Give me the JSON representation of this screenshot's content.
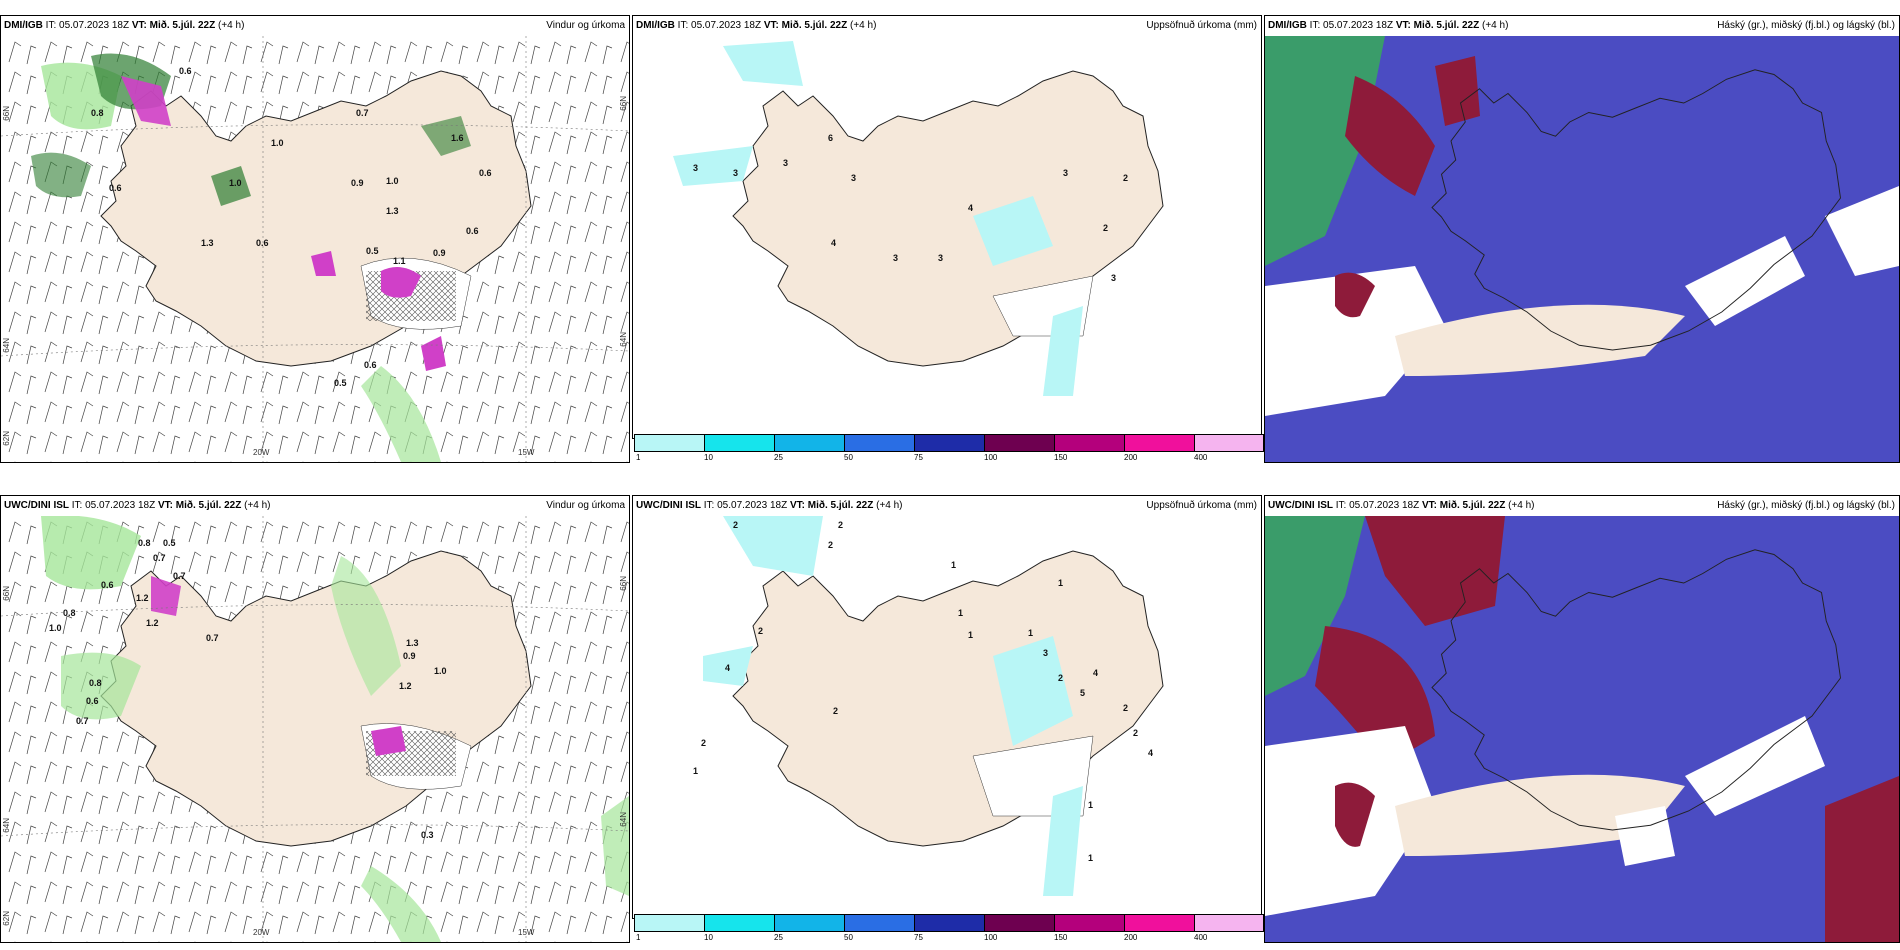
{
  "header": {
    "it_prefix": "IT:",
    "vt_prefix": "VT:",
    "issue_time": "05.07.2023 18Z",
    "valid_time": "Mið. 5.júl. 22Z",
    "lead": "(+4 h)"
  },
  "rows": [
    {
      "model": "DMI/IGB"
    },
    {
      "model": "UWC/DINI ISL"
    }
  ],
  "titles": {
    "wind_precip": "Vindur og úrkoma",
    "accum_precip": "Uppsöfnuð úrkoma (mm)",
    "clouds": "Háský (gr.), miðský (fj.bl.) og lágský (bl.)"
  },
  "axis_labels": {
    "lat_top": "66N",
    "lat_mid": "64N",
    "lat_bot": "62N",
    "lon_left": "20W",
    "lon_right": "15W",
    "lat_right_top": "66N",
    "lat_right_mid": "64N"
  },
  "colorbar": {
    "ticks": [
      "1",
      "10",
      "25",
      "50",
      "75",
      "100",
      "150",
      "200",
      "400"
    ],
    "colors": [
      "#b8f6f6",
      "#16e4ec",
      "#12b4e8",
      "#2a6ee4",
      "#1e2ca8",
      "#6e0050",
      "#b4007c",
      "#f0109c",
      "#f5b4ef"
    ]
  },
  "map_values": {
    "dmi_wind": [
      "0.6",
      "0.8",
      "0.7",
      "1.0",
      "1.6",
      "0.6",
      "0.9",
      "1.0",
      "1.3",
      "0.6",
      "0.5",
      "1.1",
      "0.9",
      "0.6",
      "0.6",
      "0.5",
      "1.3",
      "1.0",
      "0.6"
    ],
    "dmi_accum": [
      "3",
      "3",
      "3",
      "6",
      "3",
      "4",
      "3",
      "4",
      "2",
      "2",
      "3",
      "3",
      "3"
    ],
    "uwc_wind": [
      "0.8",
      "0.5",
      "0.7",
      "0.6",
      "0.7",
      "1.2",
      "0.8",
      "1.2",
      "1.0",
      "0.8",
      "0.6",
      "0.7",
      "0.7",
      "1.3",
      "0.9",
      "1.0",
      "1.2",
      "0.3"
    ],
    "uwc_accum": [
      "2",
      "2",
      "2",
      "1",
      "4",
      "2",
      "2",
      "1",
      "1",
      "1",
      "1",
      "3",
      "2",
      "5",
      "4",
      "2",
      "2",
      "4",
      "1",
      "1",
      "2",
      "1"
    ]
  },
  "colors": {
    "land": "#f5e8da",
    "snow_white": "#ffffff",
    "green_dark": "#2e7d32",
    "green_light": "#a5e69a",
    "magenta": "#d040c8",
    "cyan_precip": "#b8f6f6",
    "high_cloud": "#4b4cc2",
    "mid_cloud_red": "#8e1b3a",
    "low_cloud_green": "#3a9c6a"
  }
}
